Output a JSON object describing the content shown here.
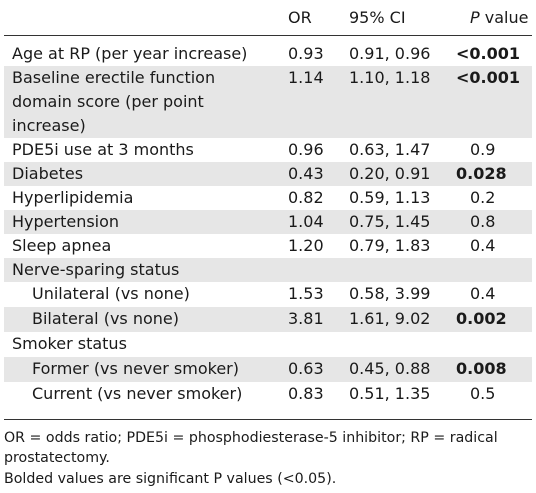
{
  "header": {
    "col_or": "OR",
    "col_ci": "95% CI",
    "col_p_italic": "P",
    "col_p_rest": " value"
  },
  "rows": [
    {
      "label": "Age at RP (per year increase)",
      "or": "0.93",
      "ci": "0.91, 0.96",
      "p": "<0.001",
      "bold": true,
      "shaded": false,
      "sub": false
    },
    {
      "label": "Baseline erectile function domain score (per point increase)",
      "or": "1.14",
      "ci": "1.10, 1.18",
      "p": "<0.001",
      "bold": true,
      "shaded": true,
      "sub": false
    },
    {
      "label": "PDE5i use at 3 months",
      "or": "0.96",
      "ci": "0.63, 1.47",
      "p": "0.9",
      "bold": false,
      "shaded": false,
      "sub": false
    },
    {
      "label": "Diabetes",
      "or": "0.43",
      "ci": "0.20, 0.91",
      "p": "0.028",
      "bold": true,
      "shaded": true,
      "sub": false
    },
    {
      "label": "Hyperlipidemia",
      "or": "0.82",
      "ci": "0.59, 1.13",
      "p": "0.2",
      "bold": false,
      "shaded": false,
      "sub": false
    },
    {
      "label": "Hypertension",
      "or": "1.04",
      "ci": "0.75, 1.45",
      "p": "0.8",
      "bold": false,
      "shaded": true,
      "sub": false
    },
    {
      "label": "Sleep apnea",
      "or": "1.20",
      "ci": "0.79, 1.83",
      "p": "0.4",
      "bold": false,
      "shaded": false,
      "sub": false
    },
    {
      "label": "Nerve-sparing status",
      "or": "",
      "ci": "",
      "p": "",
      "bold": false,
      "shaded": true,
      "sub": false
    },
    {
      "label": "Unilateral (vs none)",
      "or": "1.53",
      "ci": "0.58, 3.99",
      "p": "0.4",
      "bold": false,
      "shaded": false,
      "sub": true
    },
    {
      "label": "Bilateral (vs none)",
      "or": "3.81",
      "ci": "1.61, 9.02",
      "p": "0.002",
      "bold": true,
      "shaded": true,
      "sub": true
    },
    {
      "label": "Smoker status",
      "or": "",
      "ci": "",
      "p": "",
      "bold": false,
      "shaded": false,
      "sub": false
    },
    {
      "label": "Former (vs never smoker)",
      "or": "0.63",
      "ci": "0.45, 0.88",
      "p": "0.008",
      "bold": true,
      "shaded": true,
      "sub": true
    },
    {
      "label": "Current (vs never smoker)",
      "or": "0.83",
      "ci": "0.51, 1.35",
      "p": "0.5",
      "bold": false,
      "shaded": false,
      "sub": true
    }
  ],
  "footnotes": {
    "abbrev": "OR = odds ratio; PDE5i = phosphodiesterase-5 inhibitor; RP = radical prostatectomy.",
    "bold_note": "Bolded values are significant P values (<0.05)."
  }
}
